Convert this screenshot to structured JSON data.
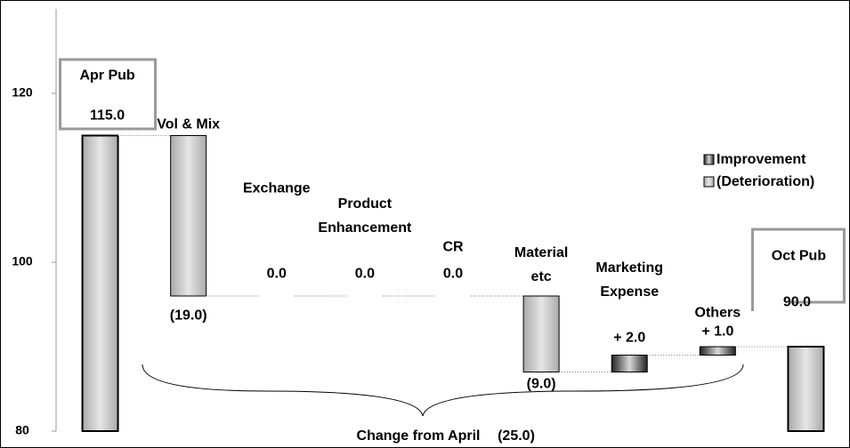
{
  "chart_data": {
    "type": "waterfall",
    "categories": [
      "Apr Pub",
      "Vol & Mix",
      "Exchange",
      "Product Enhancement",
      "CR",
      "Material etc",
      "Marketing Expense",
      "Others",
      "Oct Pub"
    ],
    "values": [
      115,
      -19,
      0,
      0,
      0,
      -9,
      2,
      1,
      90
    ],
    "value_labels": [
      "115.0",
      "(19.0)",
      "0.0",
      "0.0",
      "0.0",
      "(9.0)",
      "+ 2.0",
      "+ 1.0",
      "90.0"
    ],
    "measures": [
      "total",
      "relative",
      "relative",
      "relative",
      "relative",
      "relative",
      "relative",
      "relative",
      "total"
    ],
    "legend": [
      {
        "name": "Improvement",
        "color": "#222222"
      },
      {
        "name": "(Deterioration)",
        "color": "#aaaaaa"
      }
    ],
    "ylim": [
      80,
      130
    ],
    "yticks": [
      80,
      100,
      120
    ],
    "annotations": [
      "Change from April",
      "(25.0)"
    ]
  }
}
